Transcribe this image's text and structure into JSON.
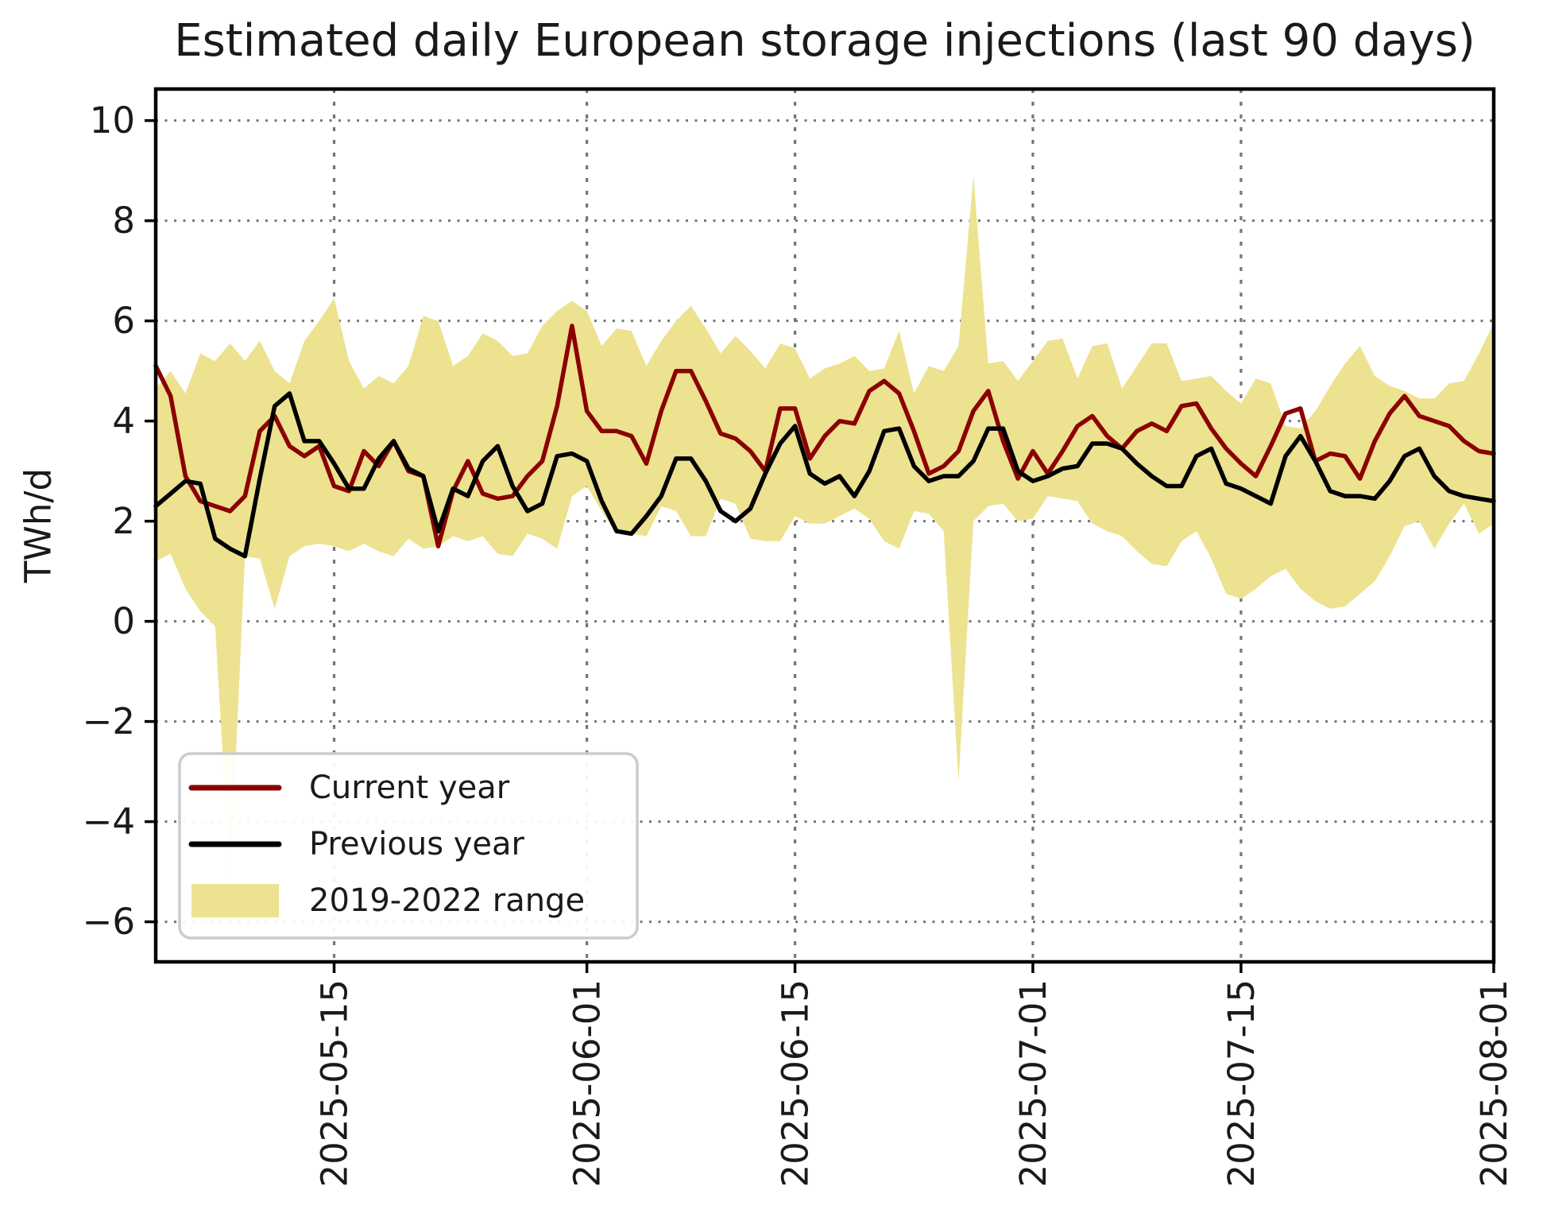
{
  "title": "Estimated daily European storage injections (last 90 days)",
  "ylabel": "TWh/d",
  "legend": {
    "items": [
      {
        "label": "Current year",
        "swatch": "line",
        "color": "#8B0000"
      },
      {
        "label": "Previous year",
        "swatch": "line",
        "color": "#000000"
      },
      {
        "label": "2019-2022 range",
        "swatch": "patch",
        "color": "#EDE28F"
      }
    ]
  },
  "colors": {
    "current": "#8B0000",
    "previous": "#000000",
    "band": "#EDE28F",
    "grid": "#757575",
    "spine": "#000000",
    "legend_border": "#cccccc"
  },
  "chart_data": {
    "type": "line",
    "title": "Estimated daily European storage injections (last 90 days)",
    "xlabel": "",
    "ylabel": "TWh/d",
    "x_start_date": "2025-05-03",
    "x_end_date": "2025-08-01",
    "n_days": 91,
    "x_tick_days": [
      12,
      29,
      43,
      59,
      73,
      90
    ],
    "x_tick_labels": [
      "2025-05-15",
      "2025-06-01",
      "2025-06-15",
      "2025-07-01",
      "2025-07-15",
      "2025-08-01"
    ],
    "y_ticks": [
      10,
      8,
      6,
      4,
      2,
      0,
      -2,
      -4,
      -6
    ],
    "ylim": [
      -6.8,
      10.63
    ],
    "grid": true,
    "legend_position": "lower left",
    "series": [
      {
        "name": "Current year",
        "color": "#8B0000",
        "values": [
          5.1,
          4.5,
          2.9,
          2.4,
          2.3,
          2.2,
          2.5,
          3.8,
          4.1,
          3.5,
          3.3,
          3.5,
          2.7,
          2.6,
          3.4,
          3.1,
          3.6,
          3.0,
          2.9,
          1.5,
          2.6,
          3.2,
          2.55,
          2.45,
          2.5,
          2.9,
          3.2,
          4.3,
          5.9,
          4.2,
          3.8,
          3.8,
          3.7,
          3.15,
          4.2,
          5.0,
          5.0,
          4.4,
          3.75,
          3.65,
          3.4,
          3.0,
          4.25,
          4.25,
          3.25,
          3.7,
          4.0,
          3.95,
          4.6,
          4.8,
          4.55,
          3.8,
          2.95,
          3.1,
          3.4,
          4.2,
          4.6,
          3.6,
          2.85,
          3.4,
          2.95,
          3.4,
          3.9,
          4.1,
          3.7,
          3.45,
          3.8,
          3.95,
          3.8,
          4.3,
          4.35,
          3.85,
          3.45,
          3.15,
          2.9,
          3.5,
          4.15,
          4.25,
          3.2,
          3.35,
          3.3,
          2.85,
          3.6,
          4.15,
          4.5,
          4.1,
          4.0,
          3.9,
          3.6,
          3.4,
          3.35
        ]
      },
      {
        "name": "Previous year",
        "color": "#000000",
        "values": [
          2.3,
          2.55,
          2.8,
          2.75,
          1.65,
          1.45,
          1.3,
          2.85,
          4.3,
          4.55,
          3.6,
          3.6,
          3.15,
          2.65,
          2.65,
          3.25,
          3.6,
          3.05,
          2.9,
          1.8,
          2.65,
          2.5,
          3.2,
          3.5,
          2.7,
          2.2,
          2.35,
          3.3,
          3.35,
          3.2,
          2.4,
          1.8,
          1.75,
          2.1,
          2.5,
          3.25,
          3.25,
          2.8,
          2.2,
          2.0,
          2.25,
          2.95,
          3.55,
          3.9,
          2.95,
          2.75,
          2.9,
          2.5,
          3.0,
          3.8,
          3.85,
          3.1,
          2.8,
          2.9,
          2.9,
          3.2,
          3.85,
          3.85,
          3.0,
          2.8,
          2.9,
          3.05,
          3.1,
          3.55,
          3.55,
          3.45,
          3.15,
          2.9,
          2.7,
          2.7,
          3.3,
          3.45,
          2.75,
          2.65,
          2.5,
          2.35,
          3.3,
          3.7,
          3.2,
          2.6,
          2.5,
          2.5,
          2.45,
          2.8,
          3.3,
          3.45,
          2.9,
          2.6,
          2.5,
          2.45,
          2.4
        ]
      }
    ],
    "band": {
      "name": "2019-2022 range",
      "color": "#EDE28F",
      "max": [
        4.65,
        5.0,
        4.55,
        5.35,
        5.2,
        5.55,
        5.2,
        5.6,
        5.0,
        4.75,
        5.6,
        6.0,
        6.45,
        5.2,
        4.65,
        4.9,
        4.75,
        5.1,
        6.1,
        6.0,
        5.1,
        5.3,
        5.75,
        5.6,
        5.3,
        5.35,
        5.9,
        6.2,
        6.4,
        6.2,
        5.5,
        5.85,
        5.8,
        5.1,
        5.6,
        6.0,
        6.3,
        5.85,
        5.35,
        5.7,
        5.4,
        5.05,
        5.55,
        5.45,
        4.85,
        5.05,
        5.15,
        5.3,
        5.0,
        5.05,
        5.8,
        4.55,
        5.1,
        5.0,
        5.5,
        8.9,
        5.15,
        5.2,
        4.8,
        5.2,
        5.6,
        5.65,
        4.85,
        5.5,
        5.55,
        4.65,
        5.1,
        5.55,
        5.55,
        4.8,
        4.85,
        4.9,
        4.6,
        4.35,
        4.85,
        4.75,
        3.9,
        3.85,
        4.2,
        4.7,
        5.15,
        5.5,
        4.9,
        4.7,
        4.6,
        4.45,
        4.45,
        4.75,
        4.8,
        5.35,
        5.95
      ],
      "min": [
        1.2,
        1.35,
        0.65,
        0.2,
        -0.1,
        -5.2,
        1.3,
        1.25,
        0.25,
        1.3,
        1.5,
        1.55,
        1.5,
        1.4,
        1.55,
        1.4,
        1.3,
        1.65,
        1.45,
        1.5,
        1.7,
        1.6,
        1.7,
        1.35,
        1.3,
        1.75,
        1.65,
        1.45,
        2.5,
        2.7,
        2.2,
        1.75,
        1.75,
        1.7,
        2.3,
        2.2,
        1.7,
        1.7,
        2.45,
        2.35,
        1.65,
        1.6,
        1.6,
        2.1,
        1.95,
        1.95,
        2.1,
        2.25,
        2.05,
        1.6,
        1.45,
        2.2,
        2.15,
        1.8,
        -3.2,
        2.0,
        2.3,
        2.35,
        2.0,
        2.05,
        2.5,
        2.45,
        2.4,
        1.95,
        1.8,
        1.7,
        1.4,
        1.15,
        1.1,
        1.6,
        1.8,
        1.25,
        0.55,
        0.45,
        0.65,
        0.9,
        1.05,
        0.65,
        0.4,
        0.25,
        0.3,
        0.55,
        0.8,
        1.3,
        1.9,
        2.0,
        1.45,
        1.95,
        2.35,
        1.75,
        1.95
      ]
    }
  }
}
